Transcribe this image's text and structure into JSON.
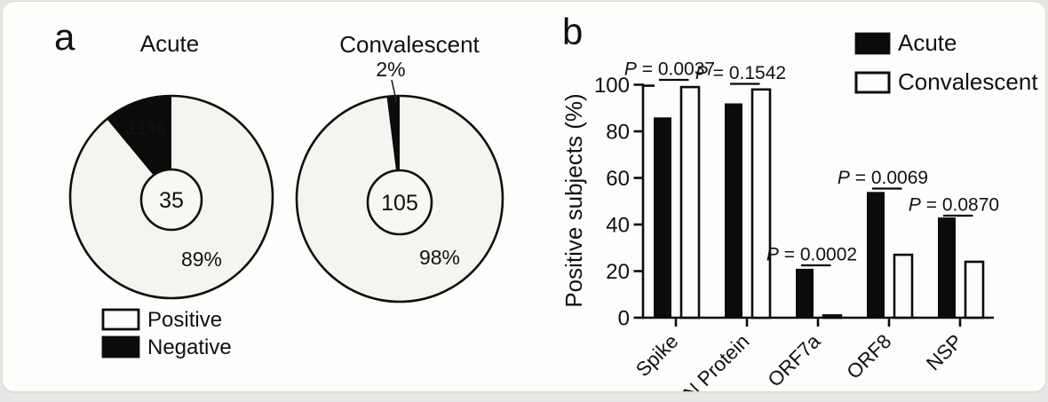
{
  "figure": {
    "panel_a_label": "a",
    "panel_b_label": "b"
  },
  "pie_legend": [
    {
      "label": "Positive",
      "swatch": "white"
    },
    {
      "label": "Negative",
      "swatch": "black"
    }
  ],
  "chart_data": [
    {
      "type": "pie",
      "panel": "a",
      "title": "Acute",
      "center_count": "35",
      "slices": [
        {
          "label": "Positive",
          "value": 89,
          "pct_label": "89%",
          "color": "#ffffff"
        },
        {
          "label": "Negative",
          "value": 11,
          "pct_label": "11%",
          "color": "#000000"
        }
      ]
    },
    {
      "type": "pie",
      "panel": "a",
      "title": "Convalescent",
      "center_count": "105",
      "slices": [
        {
          "label": "Positive",
          "value": 98,
          "pct_label": "98%",
          "color": "#ffffff"
        },
        {
          "label": "Negative",
          "value": 2,
          "pct_label": "2%",
          "color": "#000000"
        }
      ]
    },
    {
      "type": "bar",
      "panel": "b",
      "ylabel": "Positive subjects (%)",
      "ylim": [
        0,
        100
      ],
      "yticks": [
        0,
        20,
        40,
        60,
        80,
        100
      ],
      "grid": false,
      "legend_position": "top-right",
      "categories": [
        "Spike",
        "N Protein",
        "ORF7a",
        "ORF8",
        "NSP"
      ],
      "series": [
        {
          "name": "Acute",
          "color": "#000000",
          "values": [
            86,
            92,
            21,
            54,
            43
          ]
        },
        {
          "name": "Convalescent",
          "color": "#ffffff",
          "values": [
            99,
            98,
            1,
            27,
            24
          ]
        }
      ],
      "p_values": [
        {
          "label": "P",
          "value": "0.0037"
        },
        {
          "label": "P",
          "value": "0.1542"
        },
        {
          "label": "P",
          "value": "0.0002"
        },
        {
          "label": "P",
          "value": "0.0069"
        },
        {
          "label": "P",
          "value": "0.0870"
        }
      ]
    }
  ]
}
